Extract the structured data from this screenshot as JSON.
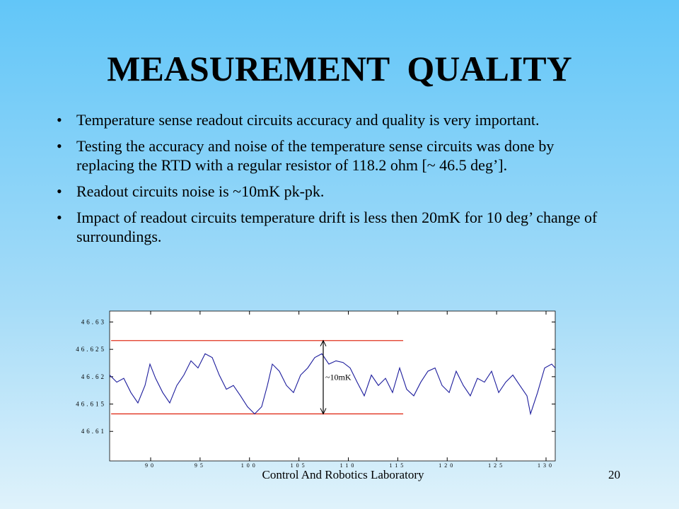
{
  "slide": {
    "title": "MEASUREMENT  QUALITY",
    "bullets": [
      "Temperature sense readout circuits accuracy and quality is very important.",
      "Testing the accuracy and noise of the temperature sense circuits was done by replacing the RTD with a regular resistor of 118.2 ohm  [~ 46.5 deg’].",
      "Readout circuits noise is ~10mK pk-pk.",
      "Impact of readout circuits temperature drift is less then 20mK for 10 deg’ change of surroundings."
    ],
    "footer": "Control And Robotics Laboratory",
    "page_number": "20"
  },
  "chart_data": {
    "type": "line",
    "x": [
      85.85,
      86.57,
      87.28,
      88.0,
      88.71,
      89.43,
      89.93,
      90.5,
      91.22,
      91.93,
      92.65,
      93.36,
      94.08,
      94.79,
      95.51,
      96.23,
      96.94,
      97.66,
      98.37,
      99.09,
      99.8,
      100.52,
      101.23,
      101.81,
      102.31,
      103.02,
      103.74,
      104.45,
      105.17,
      105.89,
      106.6,
      107.32,
      108.03,
      108.75,
      109.46,
      110.18,
      110.89,
      111.61,
      112.33,
      113.04,
      113.76,
      114.47,
      115.19,
      115.9,
      116.62,
      117.33,
      118.05,
      118.77,
      119.48,
      120.2,
      120.91,
      121.63,
      122.34,
      123.06,
      123.77,
      124.49,
      125.21,
      125.92,
      126.64,
      127.35,
      128.07,
      128.43,
      129.14,
      129.86,
      130.57,
      130.93
    ],
    "series": [
      {
        "color": "#1c1c9c",
        "values": [
          46.6203,
          46.619,
          46.6197,
          46.6171,
          46.6152,
          46.6184,
          46.6223,
          46.6197,
          46.6171,
          46.6152,
          46.6184,
          46.6203,
          46.6229,
          46.6216,
          46.6242,
          46.6235,
          46.6203,
          46.6177,
          46.6184,
          46.6165,
          46.6145,
          46.6132,
          46.6145,
          46.6184,
          46.6223,
          46.621,
          46.6184,
          46.6171,
          46.6203,
          46.6216,
          46.6235,
          46.6242,
          46.6223,
          46.6229,
          46.6226,
          46.6216,
          46.619,
          46.6165,
          46.6203,
          46.6184,
          46.6197,
          46.6171,
          46.6216,
          46.6177,
          46.6165,
          46.619,
          46.621,
          46.6216,
          46.6184,
          46.6171,
          46.621,
          46.6184,
          46.6165,
          46.6197,
          46.619,
          46.621,
          46.6171,
          46.619,
          46.6203,
          46.6184,
          46.6165,
          46.6132,
          46.6171,
          46.6216,
          46.6223,
          46.6216
        ]
      }
    ],
    "reference_lines": [
      {
        "y": 46.6266,
        "x": [
          86.0,
          115.55
        ],
        "color": "#e0301c"
      },
      {
        "y": 46.6132,
        "x": [
          86.0,
          115.55
        ],
        "color": "#e0301c"
      }
    ],
    "arrow": {
      "x": 107.46,
      "y": [
        46.6266,
        46.6132
      ]
    },
    "annotation": "~10mK",
    "xlim": [
      85.85,
      130.93
    ],
    "ylim": [
      46.6046,
      46.632
    ],
    "xticks": [
      90,
      95,
      100,
      105,
      110,
      115,
      120,
      125,
      130
    ],
    "yticks": [
      46.63,
      46.625,
      46.62,
      46.615,
      46.61
    ]
  }
}
